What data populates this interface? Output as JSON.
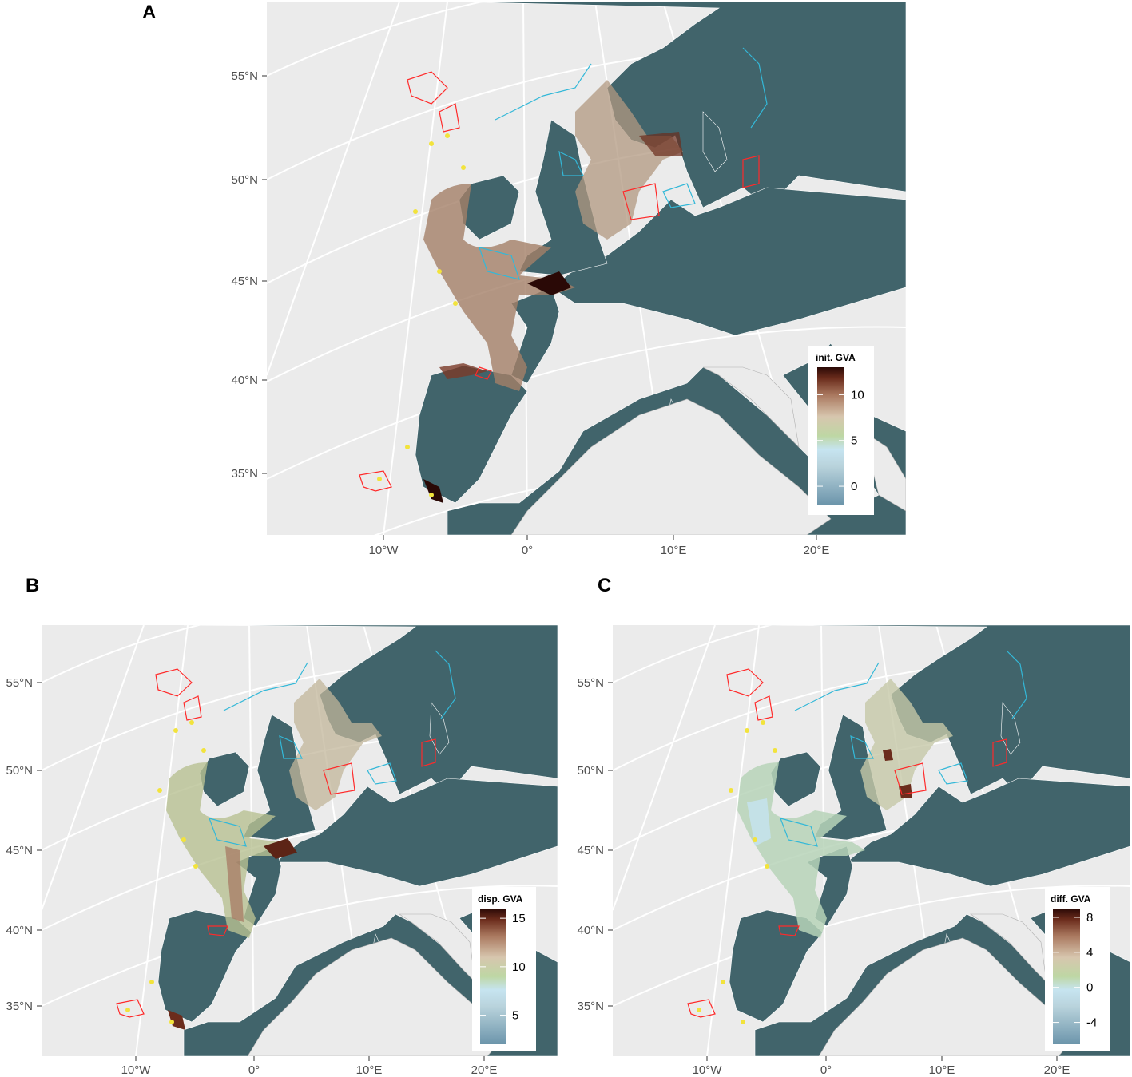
{
  "panels": [
    {
      "letter": "A",
      "lat_labels": [
        "55°N",
        "50°N",
        "45°N",
        "40°N",
        "35°N"
      ],
      "lon_labels": [
        "10°W",
        "0°",
        "10°E",
        "20°E"
      ],
      "legend": {
        "title": "init. GVA",
        "ticks": [
          "10",
          "5",
          "0"
        ],
        "values": [
          10,
          5,
          0
        ],
        "min": -2,
        "max": 13
      }
    },
    {
      "letter": "B",
      "lat_labels": [
        "55°N",
        "50°N",
        "45°N",
        "40°N",
        "35°N"
      ],
      "lon_labels": [
        "10°W",
        "0°",
        "10°E",
        "20°E"
      ],
      "legend": {
        "title": "disp. GVA",
        "ticks": [
          "15",
          "10",
          "5"
        ],
        "values": [
          15,
          10,
          5
        ],
        "min": 2,
        "max": 16
      }
    },
    {
      "letter": "C",
      "lat_labels": [
        "55°N",
        "50°N",
        "45°N",
        "40°N",
        "35°N"
      ],
      "lon_labels": [
        "10°W",
        "0°",
        "10°E",
        "20°E"
      ],
      "legend": {
        "title": "diff. GVA",
        "ticks": [
          "8",
          "4",
          "0",
          "-4"
        ],
        "values": [
          8,
          4,
          0,
          -4
        ],
        "min": -6.5,
        "max": 9
      }
    }
  ],
  "colors": {
    "sea_panel": "#ebebeb",
    "land": "#41646b",
    "graticule": "#ffffff",
    "protected_red": "#ff2a2a",
    "protected_cyan": "#33b8d8",
    "points_yellow": "#f2e33c",
    "gradient": [
      "#6c95ab",
      "#b9d3dc",
      "#c6e4f0",
      "#bed7a4",
      "#d7c6ae",
      "#a9775e",
      "#6b2c1c",
      "#2a0906"
    ]
  }
}
